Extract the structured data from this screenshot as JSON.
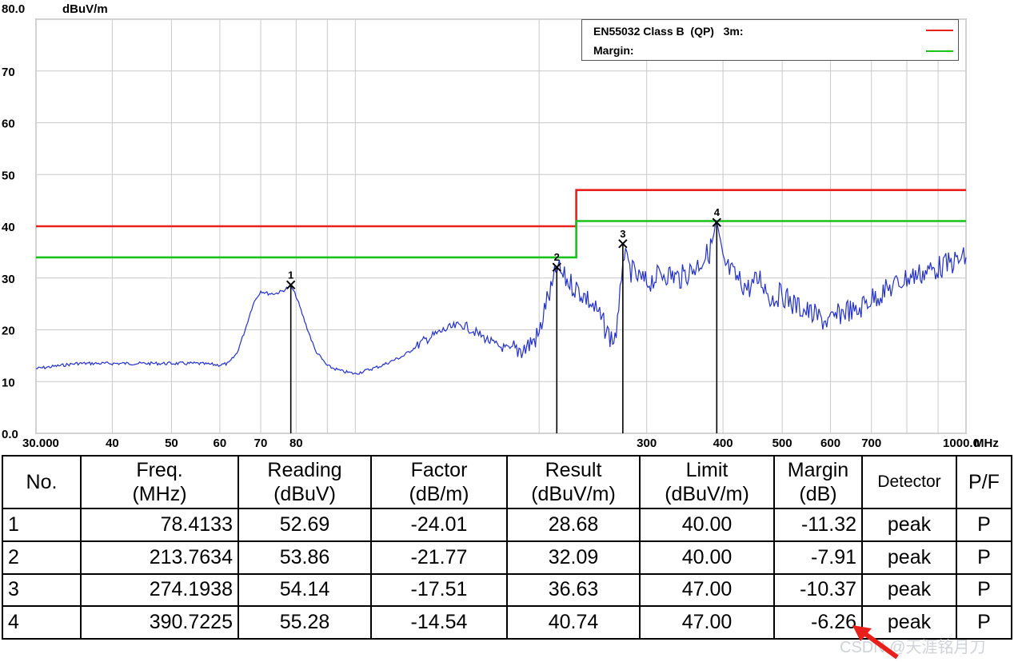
{
  "chart_data": {
    "type": "line",
    "y_unit": "dBuV/m",
    "x_unit": "MHz",
    "xscale": "log",
    "xlim": [
      30,
      1000
    ],
    "ylim": [
      0,
      80
    ],
    "grid": true,
    "legend_placement": "top-right",
    "y_tick_labels": [
      {
        "value": 80,
        "label": "80.0"
      },
      {
        "value": 70,
        "label": "70"
      },
      {
        "value": 60,
        "label": "60"
      },
      {
        "value": 50,
        "label": "50"
      },
      {
        "value": 40,
        "label": "40"
      },
      {
        "value": 30,
        "label": "30"
      },
      {
        "value": 20,
        "label": "20"
      },
      {
        "value": 10,
        "label": "10"
      },
      {
        "value": 0,
        "label": "0.0"
      }
    ],
    "x_tick_labels": [
      {
        "value": 30,
        "label": "30.000"
      },
      {
        "value": 40,
        "label": "40"
      },
      {
        "value": 50,
        "label": "50"
      },
      {
        "value": 60,
        "label": "60"
      },
      {
        "value": 70,
        "label": "70"
      },
      {
        "value": 80,
        "label": "80"
      },
      {
        "value": 300,
        "label": "300"
      },
      {
        "value": 400,
        "label": "400"
      },
      {
        "value": 500,
        "label": "500"
      },
      {
        "value": 600,
        "label": "600"
      },
      {
        "value": 700,
        "label": "700"
      },
      {
        "value": 1000,
        "label": "1000.0"
      }
    ],
    "x_gridlines": [
      30,
      40,
      50,
      60,
      70,
      80,
      90,
      100,
      200,
      300,
      400,
      500,
      600,
      700,
      800,
      900,
      1000
    ],
    "series": [
      {
        "name": "EN55032 Class B (QP) 3m:",
        "color": "#e8201c",
        "style": "step",
        "x": [
          30,
          230,
          230,
          1000
        ],
        "y": [
          40,
          40,
          47,
          47
        ]
      },
      {
        "name": "Margin:",
        "color": "#19c21a",
        "style": "step",
        "x": [
          30,
          230,
          230,
          1000
        ],
        "y": [
          34,
          34,
          41,
          41
        ]
      },
      {
        "name": "",
        "color": "#2431c8",
        "style": "line",
        "x": [
          30,
          35,
          40,
          45,
          50,
          55,
          60,
          62,
          64,
          66,
          68,
          70,
          72,
          74,
          76,
          78.4,
          80,
          83,
          86,
          90,
          95,
          100,
          110,
          120,
          130,
          140,
          150,
          160,
          170,
          180,
          190,
          200,
          205,
          210,
          213.8,
          220,
          230,
          240,
          250,
          255,
          260,
          265,
          270,
          274.2,
          280,
          290,
          300,
          320,
          340,
          360,
          380,
          390.7,
          400,
          420,
          440,
          460,
          480,
          500,
          520,
          540,
          560,
          580,
          600,
          620,
          640,
          660,
          680,
          700,
          750,
          800,
          850,
          900,
          950,
          1000
        ],
        "y": [
          12.5,
          13.5,
          13.5,
          13.5,
          13.5,
          13.5,
          13.2,
          13.5,
          15.5,
          20,
          25,
          27.5,
          27,
          27,
          27.5,
          28.5,
          26.5,
          21,
          16,
          13,
          12,
          11.5,
          13,
          15,
          18,
          20,
          21,
          19,
          17,
          16,
          16.5,
          19,
          25,
          28,
          32,
          30,
          28,
          26,
          23,
          21,
          19,
          18,
          22,
          35,
          32,
          30,
          29,
          31,
          30,
          32,
          35,
          40,
          33,
          30,
          28,
          30,
          26,
          27,
          25,
          24,
          23,
          22,
          21.5,
          23,
          24,
          23,
          25,
          26,
          28,
          30,
          31,
          32,
          33,
          34
        ]
      },
      {
        "name": "",
        "color": "#000000",
        "style": "markers",
        "x": [
          78.4133,
          213.7634,
          274.1938,
          390.7225
        ],
        "y": [
          28.68,
          32.09,
          36.63,
          40.74
        ],
        "labels": [
          "1",
          "2",
          "3",
          "4"
        ]
      }
    ]
  },
  "legend": {
    "limit_label": "EN55032 Class B  (QP)   3m:",
    "margin_label": "Margin:"
  },
  "axis_labels": {
    "y_unit": "dBuV/m",
    "x_unit": "MHz"
  },
  "table": {
    "headers": [
      {
        "line1": "No.",
        "line2": ""
      },
      {
        "line1": "Freq.",
        "line2": "(MHz)"
      },
      {
        "line1": "Reading",
        "line2": "(dBuV)"
      },
      {
        "line1": "Factor",
        "line2": "(dB/m)"
      },
      {
        "line1": "Result",
        "line2": "(dBuV/m)"
      },
      {
        "line1": "Limit",
        "line2": "(dBuV/m)"
      },
      {
        "line1": "Margin",
        "line2": "(dB)"
      },
      {
        "line1": "Detector",
        "line2": ""
      },
      {
        "line1": "P/F",
        "line2": ""
      }
    ],
    "rows": [
      [
        "1",
        "78.4133",
        "52.69",
        "-24.01",
        "28.68",
        "40.00",
        "-11.32",
        "peak",
        "P"
      ],
      [
        "2",
        "213.7634",
        "53.86",
        "-21.77",
        "32.09",
        "40.00",
        "-7.91",
        "peak",
        "P"
      ],
      [
        "3",
        "274.1938",
        "54.14",
        "-17.51",
        "36.63",
        "47.00",
        "-10.37",
        "peak",
        "P"
      ],
      [
        "4",
        "390.7225",
        "55.28",
        "-14.54",
        "40.74",
        "47.00",
        "-6.26",
        "peak",
        "P"
      ]
    ]
  },
  "watermark": "CSDN @天涯铭月刀"
}
